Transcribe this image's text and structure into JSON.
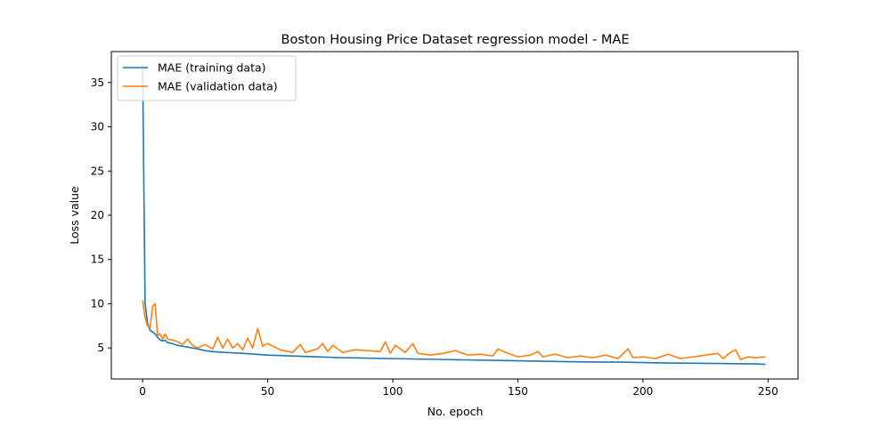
{
  "chart_data": {
    "type": "line",
    "title": "Boston Housing Price Dataset regression model - MAE",
    "xlabel": "No. epoch",
    "ylabel": "Loss value",
    "xlim": [
      -12.5,
      262
    ],
    "ylim": [
      1.5,
      38.5
    ],
    "xticks": [
      0,
      50,
      100,
      150,
      200,
      250
    ],
    "yticks": [
      5,
      10,
      15,
      20,
      25,
      30,
      35
    ],
    "grid": false,
    "legend": "top-left",
    "series": [
      {
        "name": "MAE (training data)",
        "color": "#1f77b4",
        "points": [
          [
            0,
            37.0
          ],
          [
            1,
            10.0
          ],
          [
            2,
            7.8
          ],
          [
            3,
            7.0
          ],
          [
            4,
            6.8
          ],
          [
            5,
            6.6
          ],
          [
            6,
            6.2
          ],
          [
            7,
            5.9
          ],
          [
            8,
            5.8
          ],
          [
            9,
            5.9
          ],
          [
            10,
            5.6
          ],
          [
            12,
            5.5
          ],
          [
            14,
            5.3
          ],
          [
            16,
            5.2
          ],
          [
            18,
            5.1
          ],
          [
            20,
            5.0
          ],
          [
            22,
            4.9
          ],
          [
            25,
            4.7
          ],
          [
            28,
            4.6
          ],
          [
            30,
            4.55
          ],
          [
            33,
            4.5
          ],
          [
            36,
            4.45
          ],
          [
            40,
            4.4
          ],
          [
            45,
            4.3
          ],
          [
            50,
            4.2
          ],
          [
            55,
            4.15
          ],
          [
            60,
            4.1
          ],
          [
            65,
            4.05
          ],
          [
            70,
            4.0
          ],
          [
            75,
            3.95
          ],
          [
            80,
            3.9
          ],
          [
            85,
            3.88
          ],
          [
            90,
            3.85
          ],
          [
            95,
            3.82
          ],
          [
            100,
            3.8
          ],
          [
            110,
            3.75
          ],
          [
            120,
            3.7
          ],
          [
            130,
            3.65
          ],
          [
            140,
            3.6
          ],
          [
            150,
            3.55
          ],
          [
            160,
            3.5
          ],
          [
            170,
            3.45
          ],
          [
            180,
            3.42
          ],
          [
            190,
            3.4
          ],
          [
            200,
            3.35
          ],
          [
            210,
            3.3
          ],
          [
            220,
            3.28
          ],
          [
            230,
            3.25
          ],
          [
            240,
            3.22
          ],
          [
            245,
            3.2
          ],
          [
            249,
            3.15
          ]
        ]
      },
      {
        "name": "MAE (validation data)",
        "color": "#ff7f0e",
        "points": [
          [
            0,
            10.4
          ],
          [
            1,
            8.4
          ],
          [
            2,
            7.5
          ],
          [
            3,
            7.3
          ],
          [
            4,
            9.7
          ],
          [
            5,
            10.0
          ],
          [
            6,
            6.4
          ],
          [
            7,
            6.6
          ],
          [
            8,
            6.0
          ],
          [
            9,
            6.6
          ],
          [
            10,
            6.0
          ],
          [
            12,
            5.9
          ],
          [
            14,
            5.7
          ],
          [
            16,
            5.4
          ],
          [
            18,
            6.0
          ],
          [
            20,
            5.3
          ],
          [
            22,
            5.0
          ],
          [
            25,
            5.4
          ],
          [
            28,
            4.9
          ],
          [
            30,
            6.2
          ],
          [
            32,
            5.0
          ],
          [
            34,
            6.0
          ],
          [
            36,
            5.0
          ],
          [
            38,
            5.5
          ],
          [
            40,
            4.8
          ],
          [
            42,
            6.1
          ],
          [
            44,
            5.0
          ],
          [
            46,
            7.2
          ],
          [
            48,
            5.2
          ],
          [
            50,
            5.5
          ],
          [
            55,
            4.8
          ],
          [
            60,
            4.5
          ],
          [
            63,
            5.4
          ],
          [
            65,
            4.5
          ],
          [
            70,
            4.9
          ],
          [
            72,
            5.5
          ],
          [
            74,
            4.6
          ],
          [
            76,
            5.3
          ],
          [
            80,
            4.5
          ],
          [
            85,
            4.8
          ],
          [
            90,
            4.7
          ],
          [
            95,
            4.6
          ],
          [
            97,
            5.7
          ],
          [
            99,
            4.4
          ],
          [
            101,
            5.3
          ],
          [
            105,
            4.5
          ],
          [
            108,
            5.5
          ],
          [
            110,
            4.4
          ],
          [
            115,
            4.2
          ],
          [
            120,
            4.4
          ],
          [
            125,
            4.7
          ],
          [
            130,
            4.2
          ],
          [
            135,
            4.3
          ],
          [
            140,
            4.1
          ],
          [
            142,
            4.9
          ],
          [
            145,
            4.5
          ],
          [
            150,
            4.0
          ],
          [
            155,
            4.2
          ],
          [
            158,
            4.6
          ],
          [
            160,
            4.0
          ],
          [
            165,
            4.3
          ],
          [
            170,
            3.9
          ],
          [
            175,
            4.1
          ],
          [
            180,
            3.9
          ],
          [
            185,
            4.2
          ],
          [
            190,
            3.8
          ],
          [
            194,
            4.9
          ],
          [
            196,
            3.9
          ],
          [
            200,
            4.0
          ],
          [
            205,
            3.8
          ],
          [
            210,
            4.3
          ],
          [
            215,
            3.8
          ],
          [
            220,
            4.0
          ],
          [
            225,
            4.2
          ],
          [
            230,
            4.4
          ],
          [
            232,
            3.8
          ],
          [
            235,
            4.5
          ],
          [
            237,
            4.8
          ],
          [
            239,
            3.7
          ],
          [
            242,
            4.0
          ],
          [
            245,
            3.9
          ],
          [
            249,
            4.0
          ]
        ]
      }
    ]
  }
}
